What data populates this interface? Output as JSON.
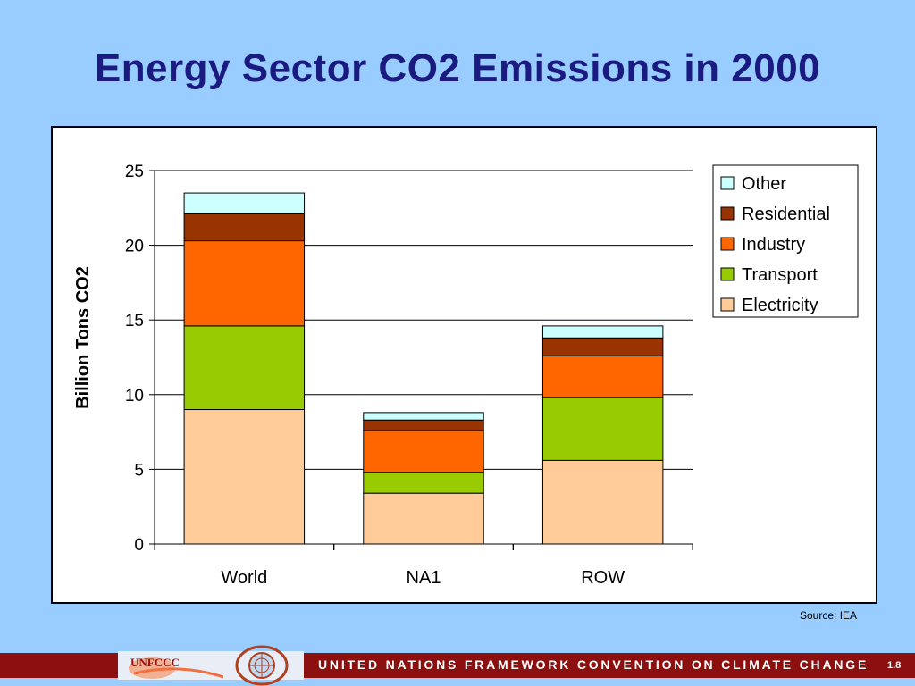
{
  "slide": {
    "title": "Energy Sector CO2 Emissions in 2000",
    "source": "Source: IEA",
    "footer_text": "UNITED NATIONS FRAMEWORK CONVENTION ON CLIMATE CHANGE",
    "page_number": "1.8",
    "logo_text": "UNFCCC"
  },
  "chart_data": {
    "type": "bar",
    "stacked": true,
    "title": "",
    "xlabel": "",
    "ylabel": "Billion Tons CO2",
    "ylim": [
      0,
      25
    ],
    "yticks": [
      0,
      5,
      10,
      15,
      20,
      25
    ],
    "grid": true,
    "legend_position": "top-right",
    "categories": [
      "World",
      "NA1",
      "ROW"
    ],
    "series": [
      {
        "name": "Electricity",
        "color": "#ffcc99",
        "values": [
          9.0,
          3.4,
          5.6
        ]
      },
      {
        "name": "Transport",
        "color": "#99cc00",
        "values": [
          5.6,
          1.4,
          4.2
        ]
      },
      {
        "name": "Industry",
        "color": "#ff6600",
        "values": [
          5.7,
          2.8,
          2.8
        ]
      },
      {
        "name": "Residential",
        "color": "#993300",
        "values": [
          1.8,
          0.7,
          1.2
        ]
      },
      {
        "name": "Other",
        "color": "#ccffff",
        "values": [
          1.4,
          0.5,
          0.8
        ]
      }
    ]
  }
}
